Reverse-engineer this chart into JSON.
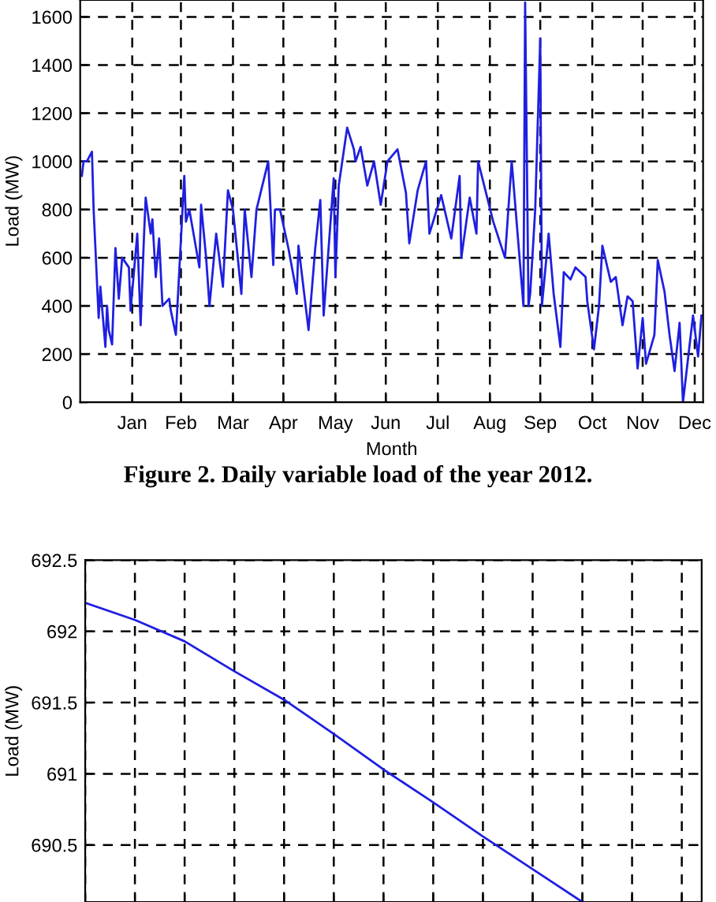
{
  "chart_data": [
    {
      "type": "line",
      "xlabel": "Month",
      "ylabel": "Load (MW)",
      "annotations": [
        "Figure 2. Daily variable load of the year 2012."
      ],
      "series": [
        {
          "color": "#1f1fe0",
          "x": [
            "2012-01-01",
            "2012-01-02",
            "2012-01-04",
            "2012-01-07",
            "2012-01-08",
            "2012-01-11",
            "2012-01-12",
            "2012-01-15",
            "2012-01-16",
            "2012-01-17",
            "2012-01-19",
            "2012-01-21",
            "2012-01-23",
            "2012-01-25",
            "2012-01-29",
            "2012-01-30",
            "2012-02-03",
            "2012-02-05",
            "2012-02-07",
            "2012-02-08",
            "2012-02-11",
            "2012-02-12",
            "2012-02-14",
            "2012-02-16",
            "2012-02-18",
            "2012-02-22",
            "2012-02-23",
            "2012-02-26",
            "2012-03-02",
            "2012-03-03",
            "2012-03-05",
            "2012-03-11",
            "2012-03-12",
            "2012-03-15",
            "2012-03-17",
            "2012-03-21",
            "2012-03-25",
            "2012-03-28",
            "2012-03-31",
            "2012-04-05",
            "2012-04-07",
            "2012-04-11",
            "2012-04-14",
            "2012-04-21",
            "2012-04-24",
            "2012-04-25",
            "2012-04-28",
            "2012-05-03",
            "2012-05-08",
            "2012-05-09",
            "2012-05-15",
            "2012-05-19",
            "2012-05-22",
            "2012-05-24",
            "2012-05-30",
            "2012-05-31",
            "2012-06-02",
            "2012-06-07",
            "2012-06-11",
            "2012-06-12",
            "2012-06-15",
            "2012-06-19",
            "2012-06-23",
            "2012-06-27",
            "2012-07-01",
            "2012-07-07",
            "2012-07-12",
            "2012-07-14",
            "2012-07-19",
            "2012-07-24",
            "2012-07-26",
            "2012-08-02",
            "2012-08-08",
            "2012-08-13",
            "2012-08-14",
            "2012-08-19",
            "2012-08-23",
            "2012-08-24",
            "2012-09-02",
            "2012-09-09",
            "2012-09-13",
            "2012-09-20",
            "2012-09-21",
            "2012-09-23",
            "2012-09-24",
            "2012-09-27",
            "2012-09-30",
            "2012-10-01",
            "2012-10-05",
            "2012-10-08",
            "2012-10-12",
            "2012-10-14",
            "2012-10-18",
            "2012-10-21",
            "2012-10-27",
            "2012-10-28",
            "2012-11-01",
            "2012-11-04",
            "2012-11-06",
            "2012-11-11",
            "2012-11-14",
            "2012-11-18",
            "2012-11-21",
            "2012-11-24",
            "2012-11-27",
            "2012-11-30",
            "2012-12-02",
            "2012-12-07",
            "2012-12-09",
            "2012-12-13",
            "2012-12-16",
            "2012-12-19",
            "2012-12-22",
            "2012-12-24",
            "2012-12-27",
            "2012-12-30",
            "2013-01-02",
            "2013-01-04"
          ],
          "values": [
            940,
            1000,
            1000,
            1040,
            800,
            350,
            480,
            230,
            400,
            300,
            240,
            640,
            430,
            600,
            560,
            380,
            700,
            320,
            690,
            850,
            700,
            760,
            520,
            680,
            400,
            430,
            380,
            280,
            940,
            750,
            800,
            560,
            820,
            600,
            400,
            700,
            480,
            880,
            800,
            450,
            800,
            520,
            800,
            1000,
            570,
            800,
            800,
            640,
            450,
            650,
            300,
            640,
            840,
            360,
            930,
            520,
            900,
            1140,
            1050,
            1000,
            1060,
            900,
            1000,
            820,
            1000,
            1050,
            870,
            660,
            880,
            1000,
            700,
            860,
            680,
            940,
            600,
            850,
            700,
            1000,
            750,
            600,
            1000,
            400,
            1660,
            400,
            450,
            800,
            1510,
            400,
            700,
            450,
            230,
            540,
            510,
            560,
            520,
            420,
            220,
            400,
            650,
            500,
            520,
            320,
            440,
            420,
            140,
            350,
            160,
            280,
            590,
            460,
            280,
            130,
            330,
            0,
            180,
            360,
            190,
            360
          ]
        }
      ],
      "xlim": [
        "2011-12-31",
        "2013-01-05"
      ],
      "ylim": [
        0,
        1670
      ],
      "xticks": [
        {
          "value": "2012-01-31",
          "label": "Jan"
        },
        {
          "value": "2012-02-29",
          "label": "Feb"
        },
        {
          "value": "2012-03-31",
          "label": "Mar"
        },
        {
          "value": "2012-04-30",
          "label": "Apr"
        },
        {
          "value": "2012-05-31",
          "label": "May"
        },
        {
          "value": "2012-06-30",
          "label": "Jun"
        },
        {
          "value": "2012-07-31",
          "label": "Jul"
        },
        {
          "value": "2012-08-31",
          "label": "Aug"
        },
        {
          "value": "2012-09-30",
          "label": "Sep"
        },
        {
          "value": "2012-10-31",
          "label": "Oct"
        },
        {
          "value": "2012-11-30",
          "label": "Nov"
        },
        {
          "value": "2012-12-31",
          "label": "Dec"
        }
      ],
      "yticks": [
        0,
        200,
        400,
        600,
        800,
        1000,
        1200,
        1400,
        1600
      ],
      "grid": true,
      "line_style": "solid",
      "marker": "none"
    },
    {
      "type": "line",
      "ylabel": "Load (MW)",
      "series": [
        {
          "color": "#1f1fe0",
          "values": [
            692.2,
            692.08,
            691.93,
            691.72,
            691.52,
            691.28,
            691.03,
            690.8,
            690.56,
            690.33,
            690.1,
            null,
            null
          ]
        }
      ],
      "categories": [
        null,
        null,
        null,
        null,
        null,
        null,
        null,
        null,
        null,
        null,
        null,
        null,
        null
      ],
      "ylim": [
        690.1,
        692.5
      ],
      "yticks": [
        690.5,
        691,
        691.5,
        692,
        692.5
      ],
      "tick_labels": "y",
      "grid": true,
      "line_style": "solid",
      "marker": "none"
    }
  ]
}
